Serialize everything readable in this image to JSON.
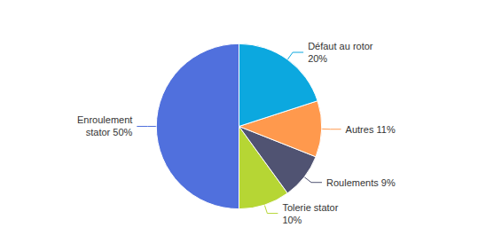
{
  "chart_data": {
    "type": "pie",
    "categories": [
      "Enroulement\nstator 50%",
      "Tolerie stator\n10%",
      "Roulements 9%",
      "Autres 11%",
      "Défaut au rotor\n20%"
    ],
    "values": [
      50,
      10,
      9,
      11,
      20
    ]
  }
}
